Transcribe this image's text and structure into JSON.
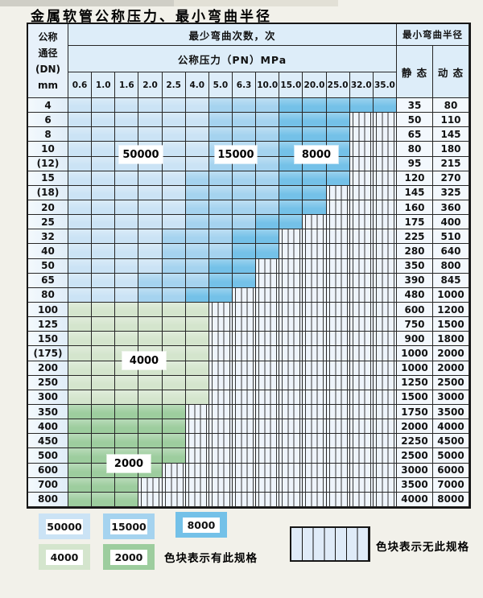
{
  "page": {
    "title": "金属软管公称压力、最小弯曲半径"
  },
  "header": {
    "dn_lines": [
      "公称",
      "通径",
      "(DN)",
      "mm"
    ],
    "cycles_title": "最少弯曲次数，次",
    "pressure_title": "公称压力（PN）MPa",
    "radius_title": "最小弯曲半径",
    "static_label": "静 态",
    "dynamic_label": "动 态",
    "pressures": [
      "0.6",
      "1.0",
      "1.6",
      "2.0",
      "2.5",
      "4.0",
      "5.0",
      "6.3",
      "10.0",
      "15.0",
      "20.0",
      "25.0",
      "32.0",
      "35.0"
    ]
  },
  "zone_colors": {
    "50000": "#cbe3f5",
    "15000": "#a5d3ef",
    "8000": "#74c1e8",
    "4000": "#d4e5cd",
    "2000": "#9dcd9e"
  },
  "rows": [
    {
      "dn": "4",
      "static": "35",
      "dynamic": "80",
      "bands": [
        [
          "50000",
          1,
          6
        ],
        [
          "15000",
          7,
          9
        ],
        [
          "8000",
          10,
          14
        ]
      ]
    },
    {
      "dn": "6",
      "static": "50",
      "dynamic": "110",
      "bands": [
        [
          "50000",
          1,
          6
        ],
        [
          "15000",
          7,
          9
        ],
        [
          "8000",
          10,
          12
        ]
      ]
    },
    {
      "dn": "8",
      "static": "65",
      "dynamic": "145",
      "bands": [
        [
          "50000",
          1,
          6
        ],
        [
          "15000",
          7,
          9
        ],
        [
          "8000",
          10,
          12
        ]
      ]
    },
    {
      "dn": "10",
      "static": "80",
      "dynamic": "180",
      "bands": [
        [
          "50000",
          1,
          6
        ],
        [
          "15000",
          7,
          9
        ],
        [
          "8000",
          10,
          12
        ]
      ]
    },
    {
      "dn": "(12)",
      "static": "95",
      "dynamic": "215",
      "bands": [
        [
          "50000",
          1,
          6
        ],
        [
          "15000",
          7,
          9
        ],
        [
          "8000",
          10,
          12
        ]
      ]
    },
    {
      "dn": "15",
      "static": "120",
      "dynamic": "270",
      "bands": [
        [
          "50000",
          1,
          5
        ],
        [
          "15000",
          6,
          9
        ],
        [
          "8000",
          10,
          12
        ]
      ]
    },
    {
      "dn": "(18)",
      "static": "145",
      "dynamic": "325",
      "bands": [
        [
          "50000",
          1,
          5
        ],
        [
          "15000",
          6,
          9
        ],
        [
          "8000",
          10,
          11
        ]
      ]
    },
    {
      "dn": "20",
      "static": "160",
      "dynamic": "360",
      "bands": [
        [
          "50000",
          1,
          5
        ],
        [
          "15000",
          6,
          9
        ],
        [
          "8000",
          10,
          11
        ]
      ]
    },
    {
      "dn": "25",
      "static": "175",
      "dynamic": "400",
      "bands": [
        [
          "50000",
          1,
          5
        ],
        [
          "15000",
          6,
          8
        ],
        [
          "8000",
          9,
          10
        ]
      ]
    },
    {
      "dn": "32",
      "static": "225",
      "dynamic": "510",
      "bands": [
        [
          "50000",
          1,
          4
        ],
        [
          "15000",
          5,
          7
        ],
        [
          "8000",
          8,
          9
        ]
      ]
    },
    {
      "dn": "40",
      "static": "280",
      "dynamic": "640",
      "bands": [
        [
          "50000",
          1,
          4
        ],
        [
          "15000",
          5,
          7
        ],
        [
          "8000",
          8,
          9
        ]
      ]
    },
    {
      "dn": "50",
      "static": "350",
      "dynamic": "800",
      "bands": [
        [
          "50000",
          1,
          4
        ],
        [
          "15000",
          5,
          6
        ],
        [
          "8000",
          7,
          8
        ]
      ]
    },
    {
      "dn": "65",
      "static": "390",
      "dynamic": "845",
      "bands": [
        [
          "50000",
          1,
          3
        ],
        [
          "15000",
          4,
          6
        ],
        [
          "8000",
          7,
          8
        ]
      ]
    },
    {
      "dn": "80",
      "static": "480",
      "dynamic": "1000",
      "bands": [
        [
          "50000",
          1,
          3
        ],
        [
          "15000",
          4,
          5
        ],
        [
          "8000",
          6,
          7
        ]
      ]
    },
    {
      "dn": "100",
      "static": "600",
      "dynamic": "1200",
      "bands": [
        [
          "4000",
          1,
          6
        ]
      ]
    },
    {
      "dn": "125",
      "static": "750",
      "dynamic": "1500",
      "bands": [
        [
          "4000",
          1,
          6
        ]
      ]
    },
    {
      "dn": "150",
      "static": "900",
      "dynamic": "1800",
      "bands": [
        [
          "4000",
          1,
          6
        ]
      ]
    },
    {
      "dn": "(175)",
      "static": "1000",
      "dynamic": "2000",
      "bands": [
        [
          "4000",
          1,
          6
        ]
      ]
    },
    {
      "dn": "200",
      "static": "1000",
      "dynamic": "2000",
      "bands": [
        [
          "4000",
          1,
          6
        ]
      ]
    },
    {
      "dn": "250",
      "static": "1250",
      "dynamic": "2500",
      "bands": [
        [
          "4000",
          1,
          6
        ]
      ]
    },
    {
      "dn": "300",
      "static": "1500",
      "dynamic": "3000",
      "bands": [
        [
          "4000",
          1,
          6
        ]
      ]
    },
    {
      "dn": "350",
      "static": "1750",
      "dynamic": "3500",
      "bands": [
        [
          "2000",
          1,
          5
        ]
      ]
    },
    {
      "dn": "400",
      "static": "2000",
      "dynamic": "4000",
      "bands": [
        [
          "2000",
          1,
          5
        ]
      ]
    },
    {
      "dn": "450",
      "static": "2250",
      "dynamic": "4500",
      "bands": [
        [
          "2000",
          1,
          5
        ]
      ]
    },
    {
      "dn": "500",
      "static": "2500",
      "dynamic": "5000",
      "bands": [
        [
          "2000",
          1,
          5
        ]
      ]
    },
    {
      "dn": "600",
      "static": "3000",
      "dynamic": "6000",
      "bands": [
        [
          "2000",
          1,
          4
        ]
      ]
    },
    {
      "dn": "700",
      "static": "3500",
      "dynamic": "7000",
      "bands": [
        [
          "2000",
          1,
          3
        ]
      ]
    },
    {
      "dn": "800",
      "static": "4000",
      "dynamic": "8000",
      "bands": [
        [
          "2000",
          1,
          3
        ]
      ]
    }
  ],
  "overlay_labels": [
    {
      "text": "50000"
    },
    {
      "text": "15000"
    },
    {
      "text": "8000"
    },
    {
      "text": "4000"
    },
    {
      "text": "2000"
    }
  ],
  "legend": {
    "has_spec_items": [
      {
        "label": "50000",
        "zone": "50000"
      },
      {
        "label": "15000",
        "zone": "15000"
      },
      {
        "label": "8000",
        "zone": "8000"
      },
      {
        "label": "4000",
        "zone": "4000"
      },
      {
        "label": "2000",
        "zone": "2000"
      }
    ],
    "has_spec_text": "色块表示有此规格",
    "no_spec_text": "色块表示无此规格"
  }
}
